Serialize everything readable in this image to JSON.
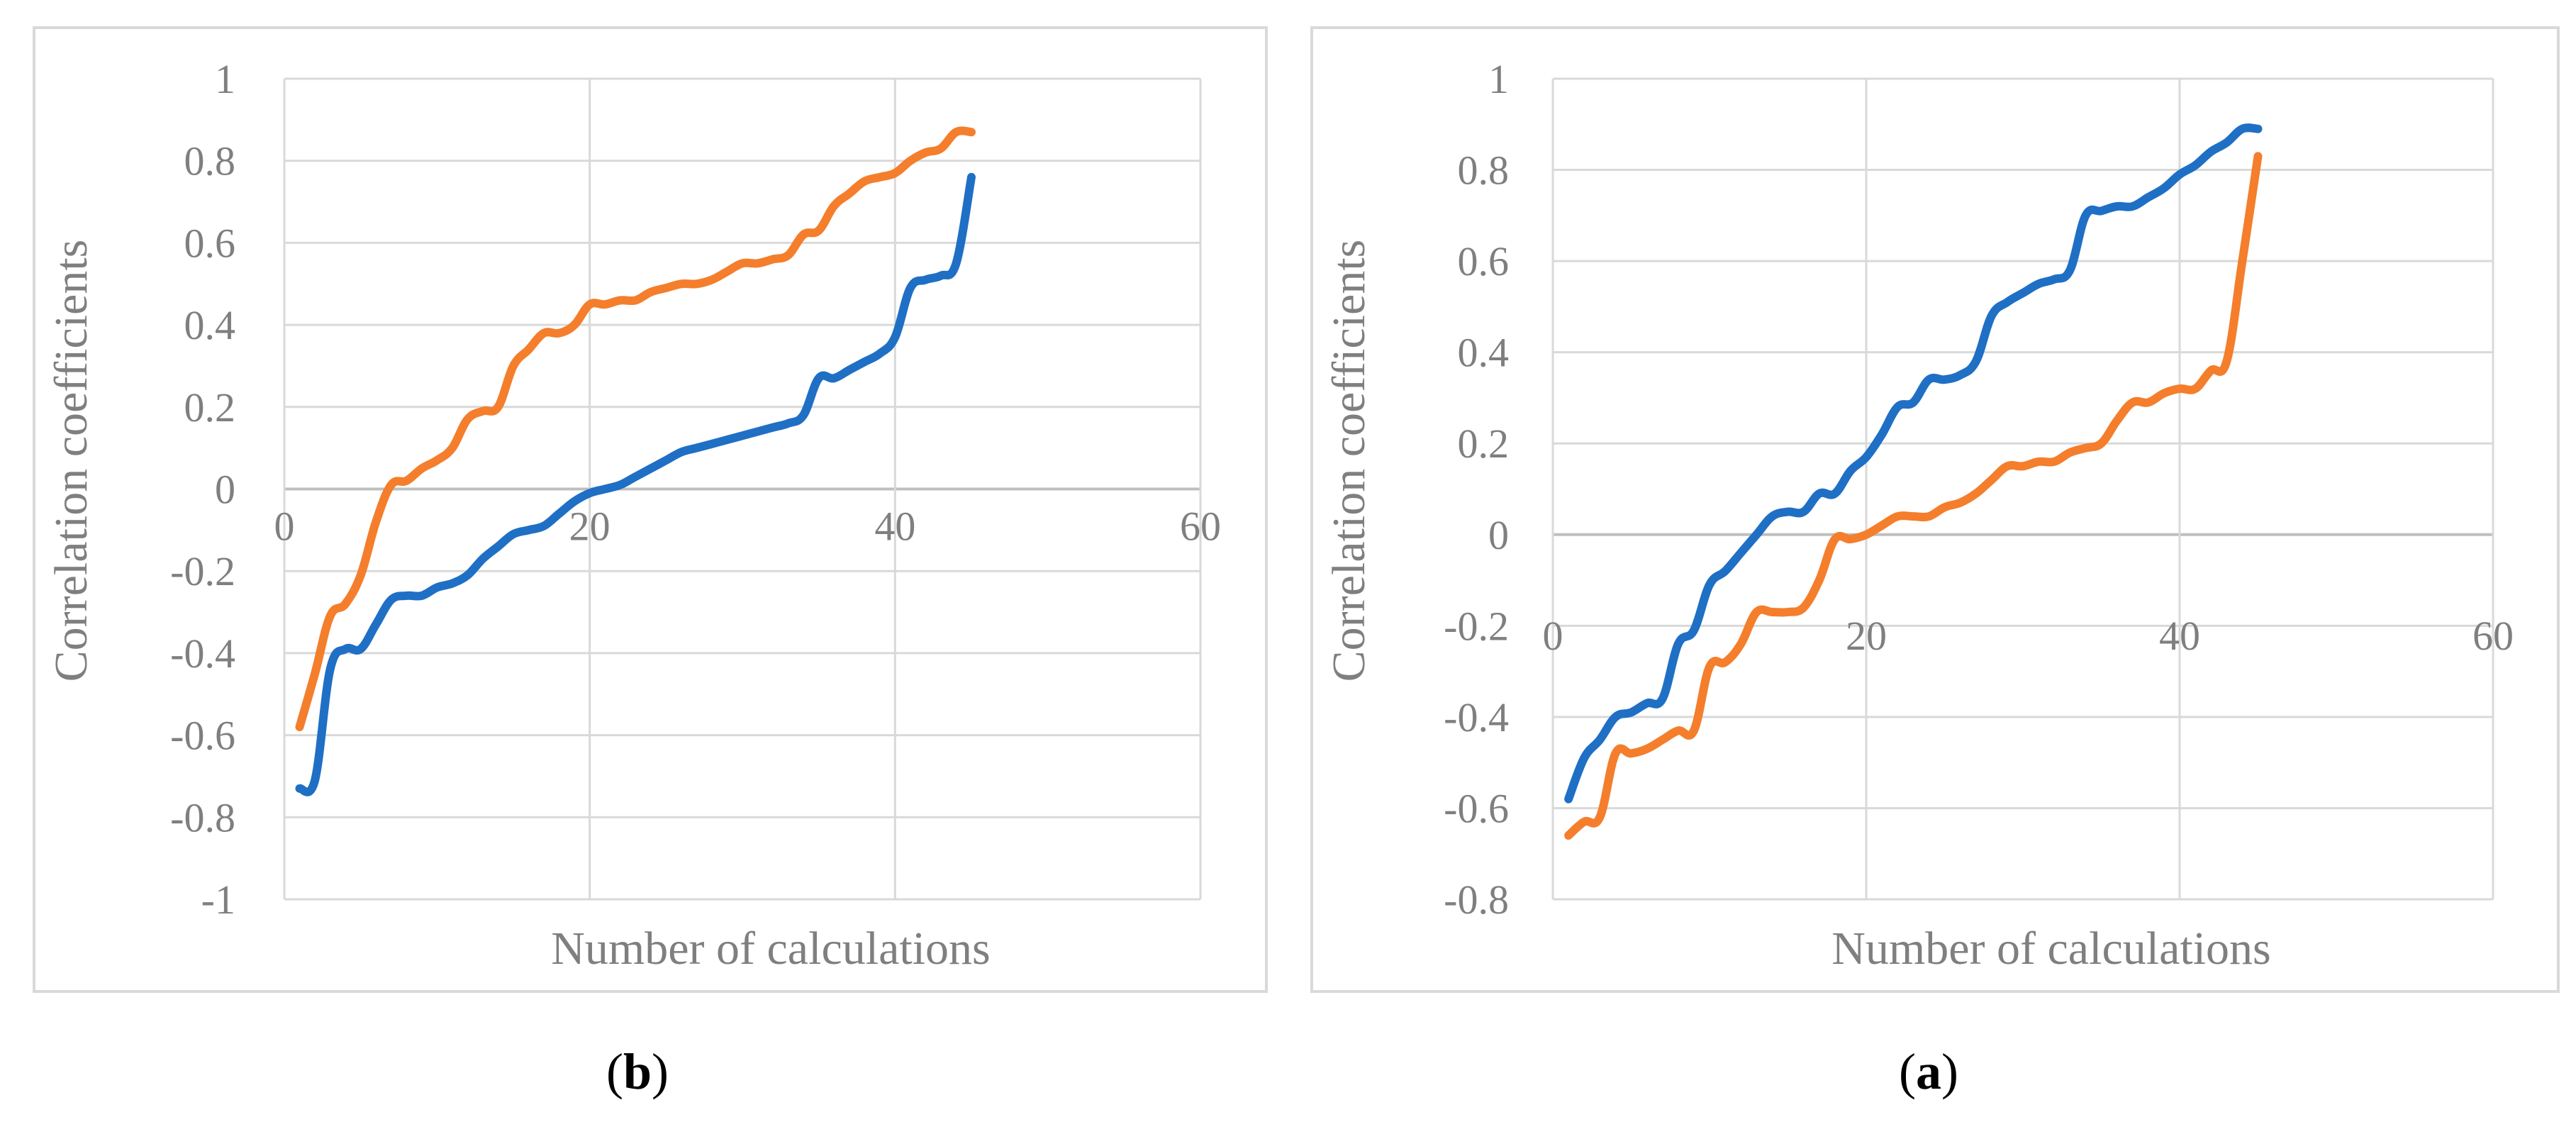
{
  "chart_data": [
    {
      "id": "b",
      "type": "line",
      "caption_label": "b",
      "xlabel": "Number of calculations",
      "ylabel": "Correlation coefficients",
      "xlim": [
        0,
        60
      ],
      "ylim": [
        -1,
        1
      ],
      "x_ticks": [
        "0",
        "20",
        "40",
        "60"
      ],
      "y_ticks": [
        "1",
        "0.8",
        "0.6",
        "0.4",
        "0.2",
        "0",
        "-0.2",
        "-0.4",
        "-0.6",
        "-0.8",
        "-1"
      ],
      "x": [
        1,
        2,
        3,
        4,
        5,
        6,
        7,
        8,
        9,
        10,
        11,
        12,
        13,
        14,
        15,
        16,
        17,
        18,
        19,
        20,
        21,
        22,
        23,
        24,
        25,
        26,
        27,
        28,
        29,
        30,
        31,
        32,
        33,
        34,
        35,
        36,
        37,
        38,
        39,
        40,
        41,
        42,
        43,
        44,
        45
      ],
      "series": [
        {
          "name": "blue",
          "color": "#1f6fc5",
          "values": [
            -0.73,
            -0.71,
            -0.44,
            -0.39,
            -0.39,
            -0.33,
            -0.27,
            -0.26,
            -0.26,
            -0.24,
            -0.23,
            -0.21,
            -0.17,
            -0.14,
            -0.11,
            -0.1,
            -0.09,
            -0.06,
            -0.03,
            -0.01,
            0.0,
            0.01,
            0.03,
            0.05,
            0.07,
            0.09,
            0.1,
            0.11,
            0.12,
            0.13,
            0.14,
            0.15,
            0.16,
            0.18,
            0.27,
            0.27,
            0.29,
            0.31,
            0.33,
            0.37,
            0.49,
            0.51,
            0.52,
            0.55,
            0.76
          ]
        },
        {
          "name": "orange",
          "color": "#f47e2c",
          "values": [
            -0.58,
            -0.45,
            -0.31,
            -0.28,
            -0.21,
            -0.08,
            0.01,
            0.02,
            0.05,
            0.07,
            0.1,
            0.17,
            0.19,
            0.2,
            0.3,
            0.34,
            0.38,
            0.38,
            0.4,
            0.45,
            0.45,
            0.46,
            0.46,
            0.48,
            0.49,
            0.5,
            0.5,
            0.51,
            0.53,
            0.55,
            0.55,
            0.56,
            0.57,
            0.62,
            0.63,
            0.69,
            0.72,
            0.75,
            0.76,
            0.77,
            0.8,
            0.82,
            0.83,
            0.87,
            0.87
          ]
        }
      ]
    },
    {
      "id": "a",
      "type": "line",
      "caption_label": "a",
      "xlabel": "Number of calculations",
      "ylabel": "Correlation coefficients",
      "xlim": [
        0,
        60
      ],
      "ylim": [
        -0.8,
        1
      ],
      "x_ticks": [
        "0",
        "20",
        "40",
        "60"
      ],
      "y_ticks": [
        "1",
        "0.8",
        "0.6",
        "0.4",
        "0.2",
        "0",
        "-0.2",
        "-0.4",
        "-0.6",
        "-0.8"
      ],
      "x": [
        1,
        2,
        3,
        4,
        5,
        6,
        7,
        8,
        9,
        10,
        11,
        12,
        13,
        14,
        15,
        16,
        17,
        18,
        19,
        20,
        21,
        22,
        23,
        24,
        25,
        26,
        27,
        28,
        29,
        30,
        31,
        32,
        33,
        34,
        35,
        36,
        37,
        38,
        39,
        40,
        41,
        42,
        43,
        44,
        45
      ],
      "series": [
        {
          "name": "blue",
          "color": "#1f6fc5",
          "values": [
            -0.58,
            -0.49,
            -0.45,
            -0.4,
            -0.39,
            -0.37,
            -0.36,
            -0.24,
            -0.21,
            -0.11,
            -0.08,
            -0.04,
            0.0,
            0.04,
            0.05,
            0.05,
            0.09,
            0.09,
            0.14,
            0.17,
            0.22,
            0.28,
            0.29,
            0.34,
            0.34,
            0.35,
            0.38,
            0.48,
            0.51,
            0.53,
            0.55,
            0.56,
            0.58,
            0.7,
            0.71,
            0.72,
            0.72,
            0.74,
            0.76,
            0.79,
            0.81,
            0.84,
            0.86,
            0.89,
            0.89
          ]
        },
        {
          "name": "orange",
          "color": "#f47e2c",
          "values": [
            -0.66,
            -0.63,
            -0.62,
            -0.48,
            -0.48,
            -0.47,
            -0.45,
            -0.43,
            -0.43,
            -0.29,
            -0.28,
            -0.24,
            -0.17,
            -0.17,
            -0.17,
            -0.16,
            -0.1,
            -0.01,
            -0.01,
            0.0,
            0.02,
            0.04,
            0.04,
            0.04,
            0.06,
            0.07,
            0.09,
            0.12,
            0.15,
            0.15,
            0.16,
            0.16,
            0.18,
            0.19,
            0.2,
            0.25,
            0.29,
            0.29,
            0.31,
            0.32,
            0.32,
            0.36,
            0.38,
            0.6,
            0.83
          ]
        }
      ]
    }
  ]
}
